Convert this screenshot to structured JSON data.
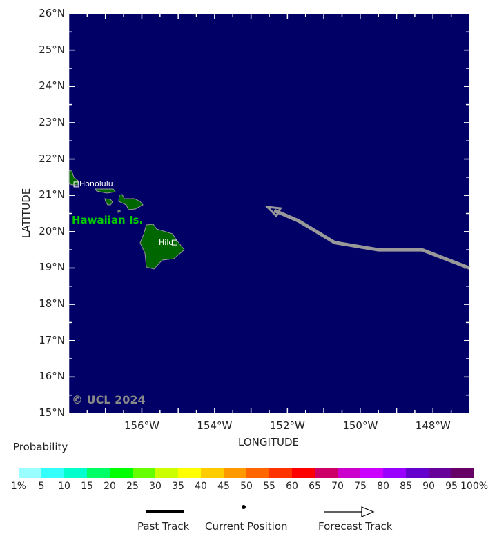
{
  "map": {
    "lon_range": [
      -158,
      -147
    ],
    "lat_range": [
      15,
      26
    ],
    "ocean_color": "#000066",
    "land_color": "#006600",
    "lat_labels": [
      "26°N",
      "25°N",
      "24°N",
      "23°N",
      "22°N",
      "21°N",
      "20°N",
      "19°N",
      "18°N",
      "17°N",
      "16°N",
      "15°N"
    ],
    "lat_values": [
      26,
      25,
      24,
      23,
      22,
      21,
      20,
      19,
      18,
      17,
      16,
      15
    ],
    "lon_labels": [
      "156°W",
      "154°W",
      "152°W",
      "150°W",
      "148°W"
    ],
    "lon_values": [
      -156,
      -154,
      -152,
      -150,
      -148
    ],
    "xlabel": "LONGITUDE",
    "ylabel": "LATITUDE",
    "region_label": "Hawaiian Is.",
    "cities": [
      {
        "name": "Honolulu",
        "lon": -157.8,
        "lat": 21.3
      },
      {
        "name": "Hilo",
        "lon": -155.1,
        "lat": 19.7
      }
    ],
    "watermark": "© UCL 2024",
    "forecast_track": {
      "color": "#999999",
      "points": [
        [
          -147.0,
          19.0
        ],
        [
          -148.3,
          19.5
        ],
        [
          -149.5,
          19.5
        ],
        [
          -150.7,
          19.7
        ],
        [
          -151.7,
          20.3
        ],
        [
          -152.55,
          20.68
        ]
      ]
    }
  },
  "legend": {
    "title": "Probability",
    "colors": [
      "#99ffff",
      "#33ffff",
      "#00ffcc",
      "#00ff66",
      "#00ff00",
      "#66ff00",
      "#ccff00",
      "#ffff00",
      "#ffcc00",
      "#ff9900",
      "#ff6600",
      "#ff3300",
      "#ff0000",
      "#cc0066",
      "#cc00cc",
      "#cc00ff",
      "#9900ff",
      "#6600cc",
      "#660099",
      "#660066"
    ],
    "labels": [
      "1%",
      "5",
      "10",
      "15",
      "20",
      "25",
      "30",
      "35",
      "40",
      "45",
      "50",
      "55",
      "60",
      "65",
      "70",
      "75",
      "80",
      "85",
      "90",
      "95",
      "100%"
    ],
    "past_track": "Past Track",
    "current_position": "Current Position",
    "forecast_track": "Forecast Track"
  }
}
